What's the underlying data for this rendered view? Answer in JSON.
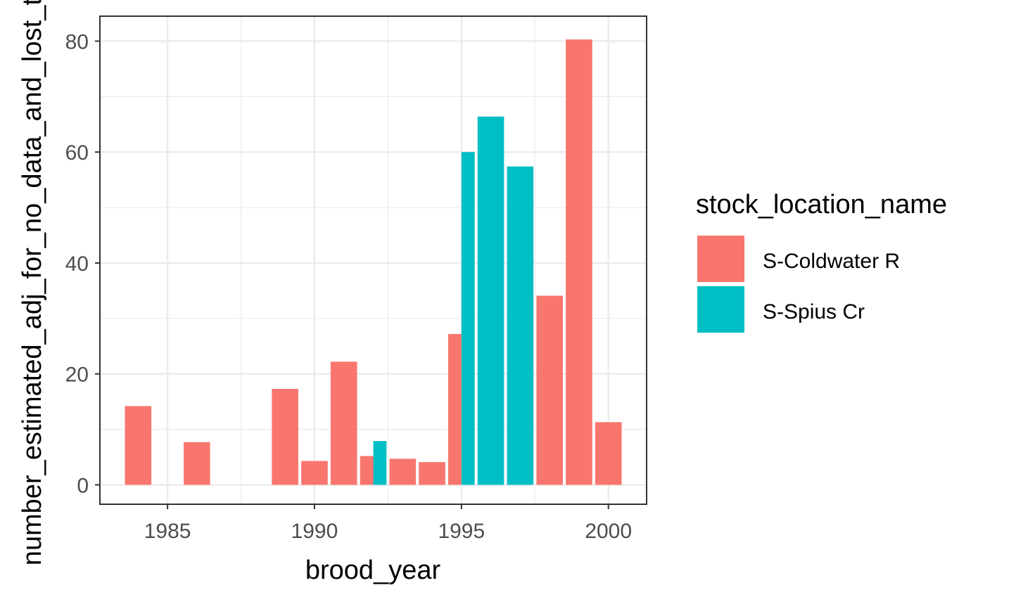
{
  "chart_data": {
    "type": "bar",
    "position": "dodge",
    "xlabel": "brood_year",
    "ylabel": "number_estimated_adj_for_no_data_and_lost_tags",
    "xlim": [
      1982.7,
      2001.3
    ],
    "ylim": [
      -3.5,
      84.5
    ],
    "x_ticks": [
      1985,
      1990,
      1995,
      2000
    ],
    "y_ticks": [
      0,
      20,
      40,
      60,
      80
    ],
    "grid": true,
    "legend": {
      "title": "stock_location_name",
      "position": "right"
    },
    "series": [
      {
        "name": "S-Coldwater R",
        "color": "#F8766D",
        "points": [
          {
            "x": 1984,
            "y": 14.2
          },
          {
            "x": 1986,
            "y": 7.7
          },
          {
            "x": 1989,
            "y": 17.3
          },
          {
            "x": 1990,
            "y": 4.3
          },
          {
            "x": 1991,
            "y": 22.2
          },
          {
            "x": 1992,
            "y": 5.2
          },
          {
            "x": 1993,
            "y": 4.7
          },
          {
            "x": 1994,
            "y": 4.1
          },
          {
            "x": 1995,
            "y": 27.2
          },
          {
            "x": 1998,
            "y": 34.1
          },
          {
            "x": 1999,
            "y": 80.3
          },
          {
            "x": 2000,
            "y": 11.3
          }
        ]
      },
      {
        "name": "S-Spius Cr",
        "color": "#00BFC4",
        "points": [
          {
            "x": 1992,
            "y": 7.9
          },
          {
            "x": 1995,
            "y": 60.0
          },
          {
            "x": 1996,
            "y": 66.4
          },
          {
            "x": 1997,
            "y": 57.4
          }
        ]
      }
    ]
  }
}
